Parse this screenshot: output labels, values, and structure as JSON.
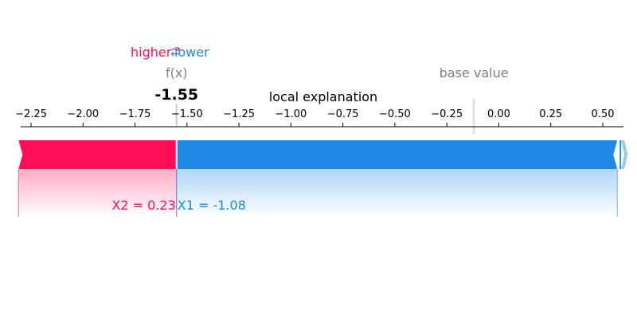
{
  "chart_data": {
    "type": "force",
    "title": "local explanation",
    "output_label": "f(x)",
    "output_value": -1.55,
    "output_value_text": "-1.55",
    "base_label": "base value",
    "base_value": -0.12,
    "legend": {
      "higher_label": "higher",
      "lower_label": "lower",
      "arrow_right": "→",
      "arrow_left": "←"
    },
    "xlim": [
      -2.3,
      0.6
    ],
    "ticks": [
      -2.25,
      -2.0,
      -1.75,
      -1.5,
      -1.25,
      -1.0,
      -0.75,
      -0.5,
      -0.25,
      0.0,
      0.25,
      0.5
    ],
    "tick_labels": [
      "−2.25",
      "−2.00",
      "−1.75",
      "−1.50",
      "−1.25",
      "−1.00",
      "−0.75",
      "−0.50",
      "−0.25",
      "0.00",
      "0.25",
      "0.50"
    ],
    "features": [
      {
        "label": "X2 = 0.23",
        "direction": "higher",
        "start": -2.31,
        "end": -1.55
      },
      {
        "label": "X1 = -1.08",
        "direction": "lower",
        "start": -1.55,
        "end": 0.57
      }
    ],
    "colors": {
      "higher": "#ff0d57",
      "lower": "#1e88e5",
      "grey_text": "#808080",
      "axis": "#000000"
    }
  }
}
